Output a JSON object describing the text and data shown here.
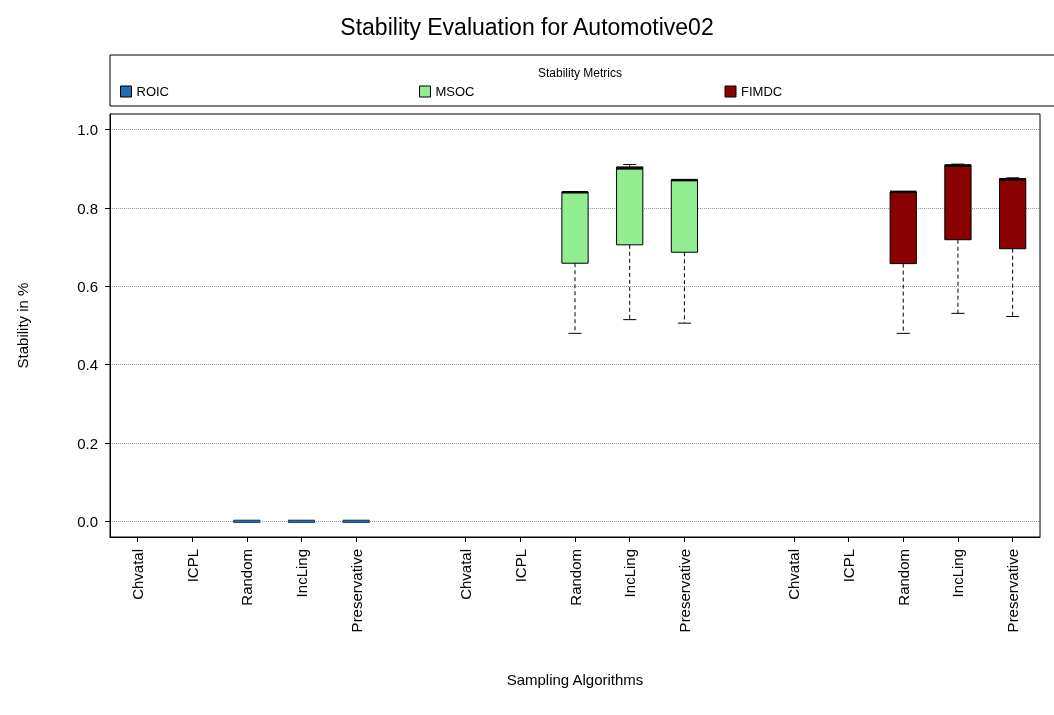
{
  "chart_data": {
    "type": "box",
    "title": "Stability Evaluation for Automotive02",
    "xlabel": "Sampling Algorithms",
    "ylabel": "Stability in %",
    "legend_title": "Stability Metrics",
    "categories": [
      "Chvatal",
      "ICPL",
      "Random",
      "IncLing",
      "Preservative",
      null,
      "Chvatal",
      "ICPL",
      "Random",
      "IncLing",
      "Preservative",
      null,
      "Chvatal",
      "ICPL",
      "Random",
      "IncLing",
      "Preservative"
    ],
    "series": [
      {
        "name": "ROIC",
        "color": "#1f6db3",
        "boxes": [
          null,
          null,
          {
            "low": 0,
            "q1": 0,
            "median": 0,
            "q3": 0,
            "high": 0
          },
          {
            "low": 0,
            "q1": 0,
            "median": 0,
            "q3": 0,
            "high": 0
          },
          {
            "low": 0,
            "q1": 0,
            "median": 0,
            "q3": 0,
            "high": 0
          },
          null,
          null,
          null,
          null,
          null,
          null,
          null,
          null,
          null,
          null,
          null,
          null
        ]
      },
      {
        "name": "MSOC",
        "color": "#90ee90",
        "boxes": [
          null,
          null,
          null,
          null,
          null,
          null,
          null,
          null,
          {
            "low": 0.48,
            "q1": 0.659,
            "median": 0.837,
            "q3": 0.84,
            "high": 0.841
          },
          {
            "low": 0.515,
            "q1": 0.706,
            "median": 0.898,
            "q3": 0.905,
            "high": 0.911
          },
          {
            "low": 0.506,
            "q1": 0.687,
            "median": 0.868,
            "q3": 0.872,
            "high": 0.873
          },
          null,
          null,
          null,
          null,
          null,
          null
        ]
      },
      {
        "name": "FIMDC",
        "color": "#8b0000",
        "boxes": [
          null,
          null,
          null,
          null,
          null,
          null,
          null,
          null,
          null,
          null,
          null,
          null,
          null,
          null,
          {
            "low": 0.48,
            "q1": 0.658,
            "median": 0.838,
            "q3": 0.841,
            "high": 0.842
          },
          {
            "low": 0.531,
            "q1": 0.719,
            "median": 0.905,
            "q3": 0.91,
            "high": 0.912
          },
          {
            "low": 0.523,
            "q1": 0.696,
            "median": 0.87,
            "q3": 0.875,
            "high": 0.877
          }
        ]
      }
    ],
    "ylim": [
      -0.04,
      1.04
    ],
    "yticks": [
      {
        "value": 0,
        "label": "0.0"
      },
      {
        "value": 0.2,
        "label": "0.2"
      },
      {
        "value": 0.4,
        "label": "0.4"
      },
      {
        "value": 0.6,
        "label": "0.6"
      },
      {
        "value": 0.8,
        "label": "0.8"
      },
      {
        "value": 1,
        "label": "1.0"
      }
    ],
    "grid": "y",
    "legend": "top"
  }
}
